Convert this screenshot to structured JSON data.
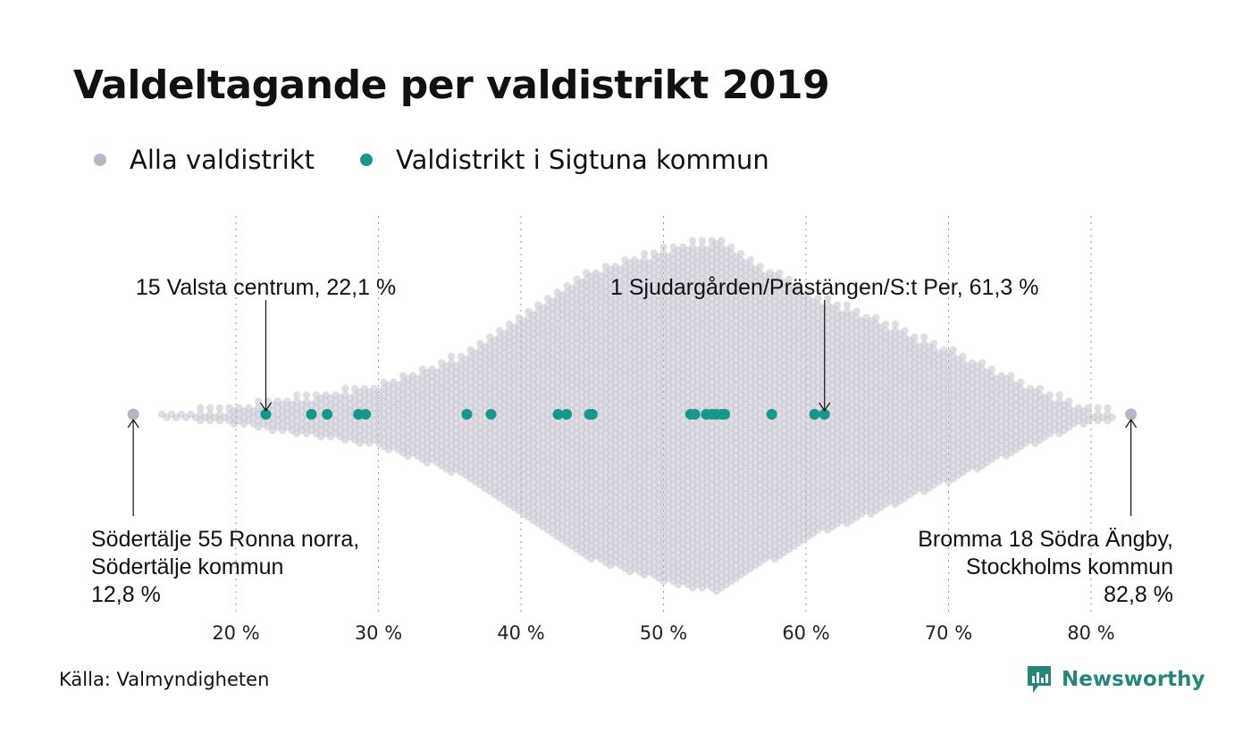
{
  "title": "Valdeltagande per valdistrikt 2019",
  "legend": [
    {
      "label": "Alla valdistrikt",
      "color": "#b8b6c6"
    },
    {
      "label": "Valdistrikt i Sigtuna kommun",
      "color": "#17978b"
    }
  ],
  "source": "Källa: Valmyndigheten",
  "brand": {
    "name": "Newsworthy",
    "icon": "bar-chart-logo-icon",
    "color": "#27857a"
  },
  "chart_data": {
    "type": "scatter",
    "subtype": "beeswarm",
    "xlim": [
      12,
      84
    ],
    "x_ticks": [
      {
        "value": 20,
        "label": "20 %"
      },
      {
        "value": 30,
        "label": "30 %"
      },
      {
        "value": 40,
        "label": "40 %"
      },
      {
        "value": 50,
        "label": "50 %"
      },
      {
        "value": 60,
        "label": "60 %"
      },
      {
        "value": 70,
        "label": "70 %"
      },
      {
        "value": 80,
        "label": "80 %"
      }
    ],
    "grid": "vertical-dotted",
    "all_districts": {
      "color": "#b8b6c6",
      "min": 12.8,
      "max": 82.8,
      "peak": 53.8,
      "density_profile": [
        [
          15,
          0.02
        ],
        [
          20,
          0.06
        ],
        [
          25,
          0.12
        ],
        [
          30,
          0.18
        ],
        [
          35,
          0.32
        ],
        [
          40,
          0.56
        ],
        [
          45,
          0.82
        ],
        [
          50,
          0.94
        ],
        [
          53.8,
          1.0
        ],
        [
          57,
          0.85
        ],
        [
          60,
          0.7
        ],
        [
          65,
          0.55
        ],
        [
          70,
          0.38
        ],
        [
          75,
          0.2
        ],
        [
          80,
          0.04
        ]
      ]
    },
    "sigtuna_districts": {
      "color": "#17978b",
      "values": [
        22.1,
        25.3,
        26.4,
        28.6,
        29.1,
        36.2,
        37.9,
        42.6,
        43.2,
        44.8,
        45.0,
        51.9,
        52.2,
        53.0,
        53.4,
        53.7,
        54.1,
        54.3,
        57.6,
        60.6,
        61.3
      ]
    },
    "highlight_points": [
      {
        "value": 12.8,
        "color": "#b8b6c6"
      },
      {
        "value": 82.8,
        "color": "#b8b6c6"
      }
    ],
    "annotations": [
      {
        "lines": [
          "15 Valsta centrum, 22,1 %"
        ],
        "value": 22.1,
        "position": "above",
        "align": "middle"
      },
      {
        "lines": [
          "1 Sjudargården/Prästängen/S:t Per, 61,3 %"
        ],
        "value": 61.3,
        "position": "above",
        "align": "middle"
      },
      {
        "lines": [
          "Södertälje 55 Ronna norra,",
          "Södertälje kommun",
          "12,8 %"
        ],
        "value": 12.8,
        "position": "below",
        "align": "start"
      },
      {
        "lines": [
          "Bromma 18 Södra Ängby,",
          "Stockholms kommun",
          "82,8 %"
        ],
        "value": 82.8,
        "position": "below",
        "align": "end"
      }
    ]
  }
}
